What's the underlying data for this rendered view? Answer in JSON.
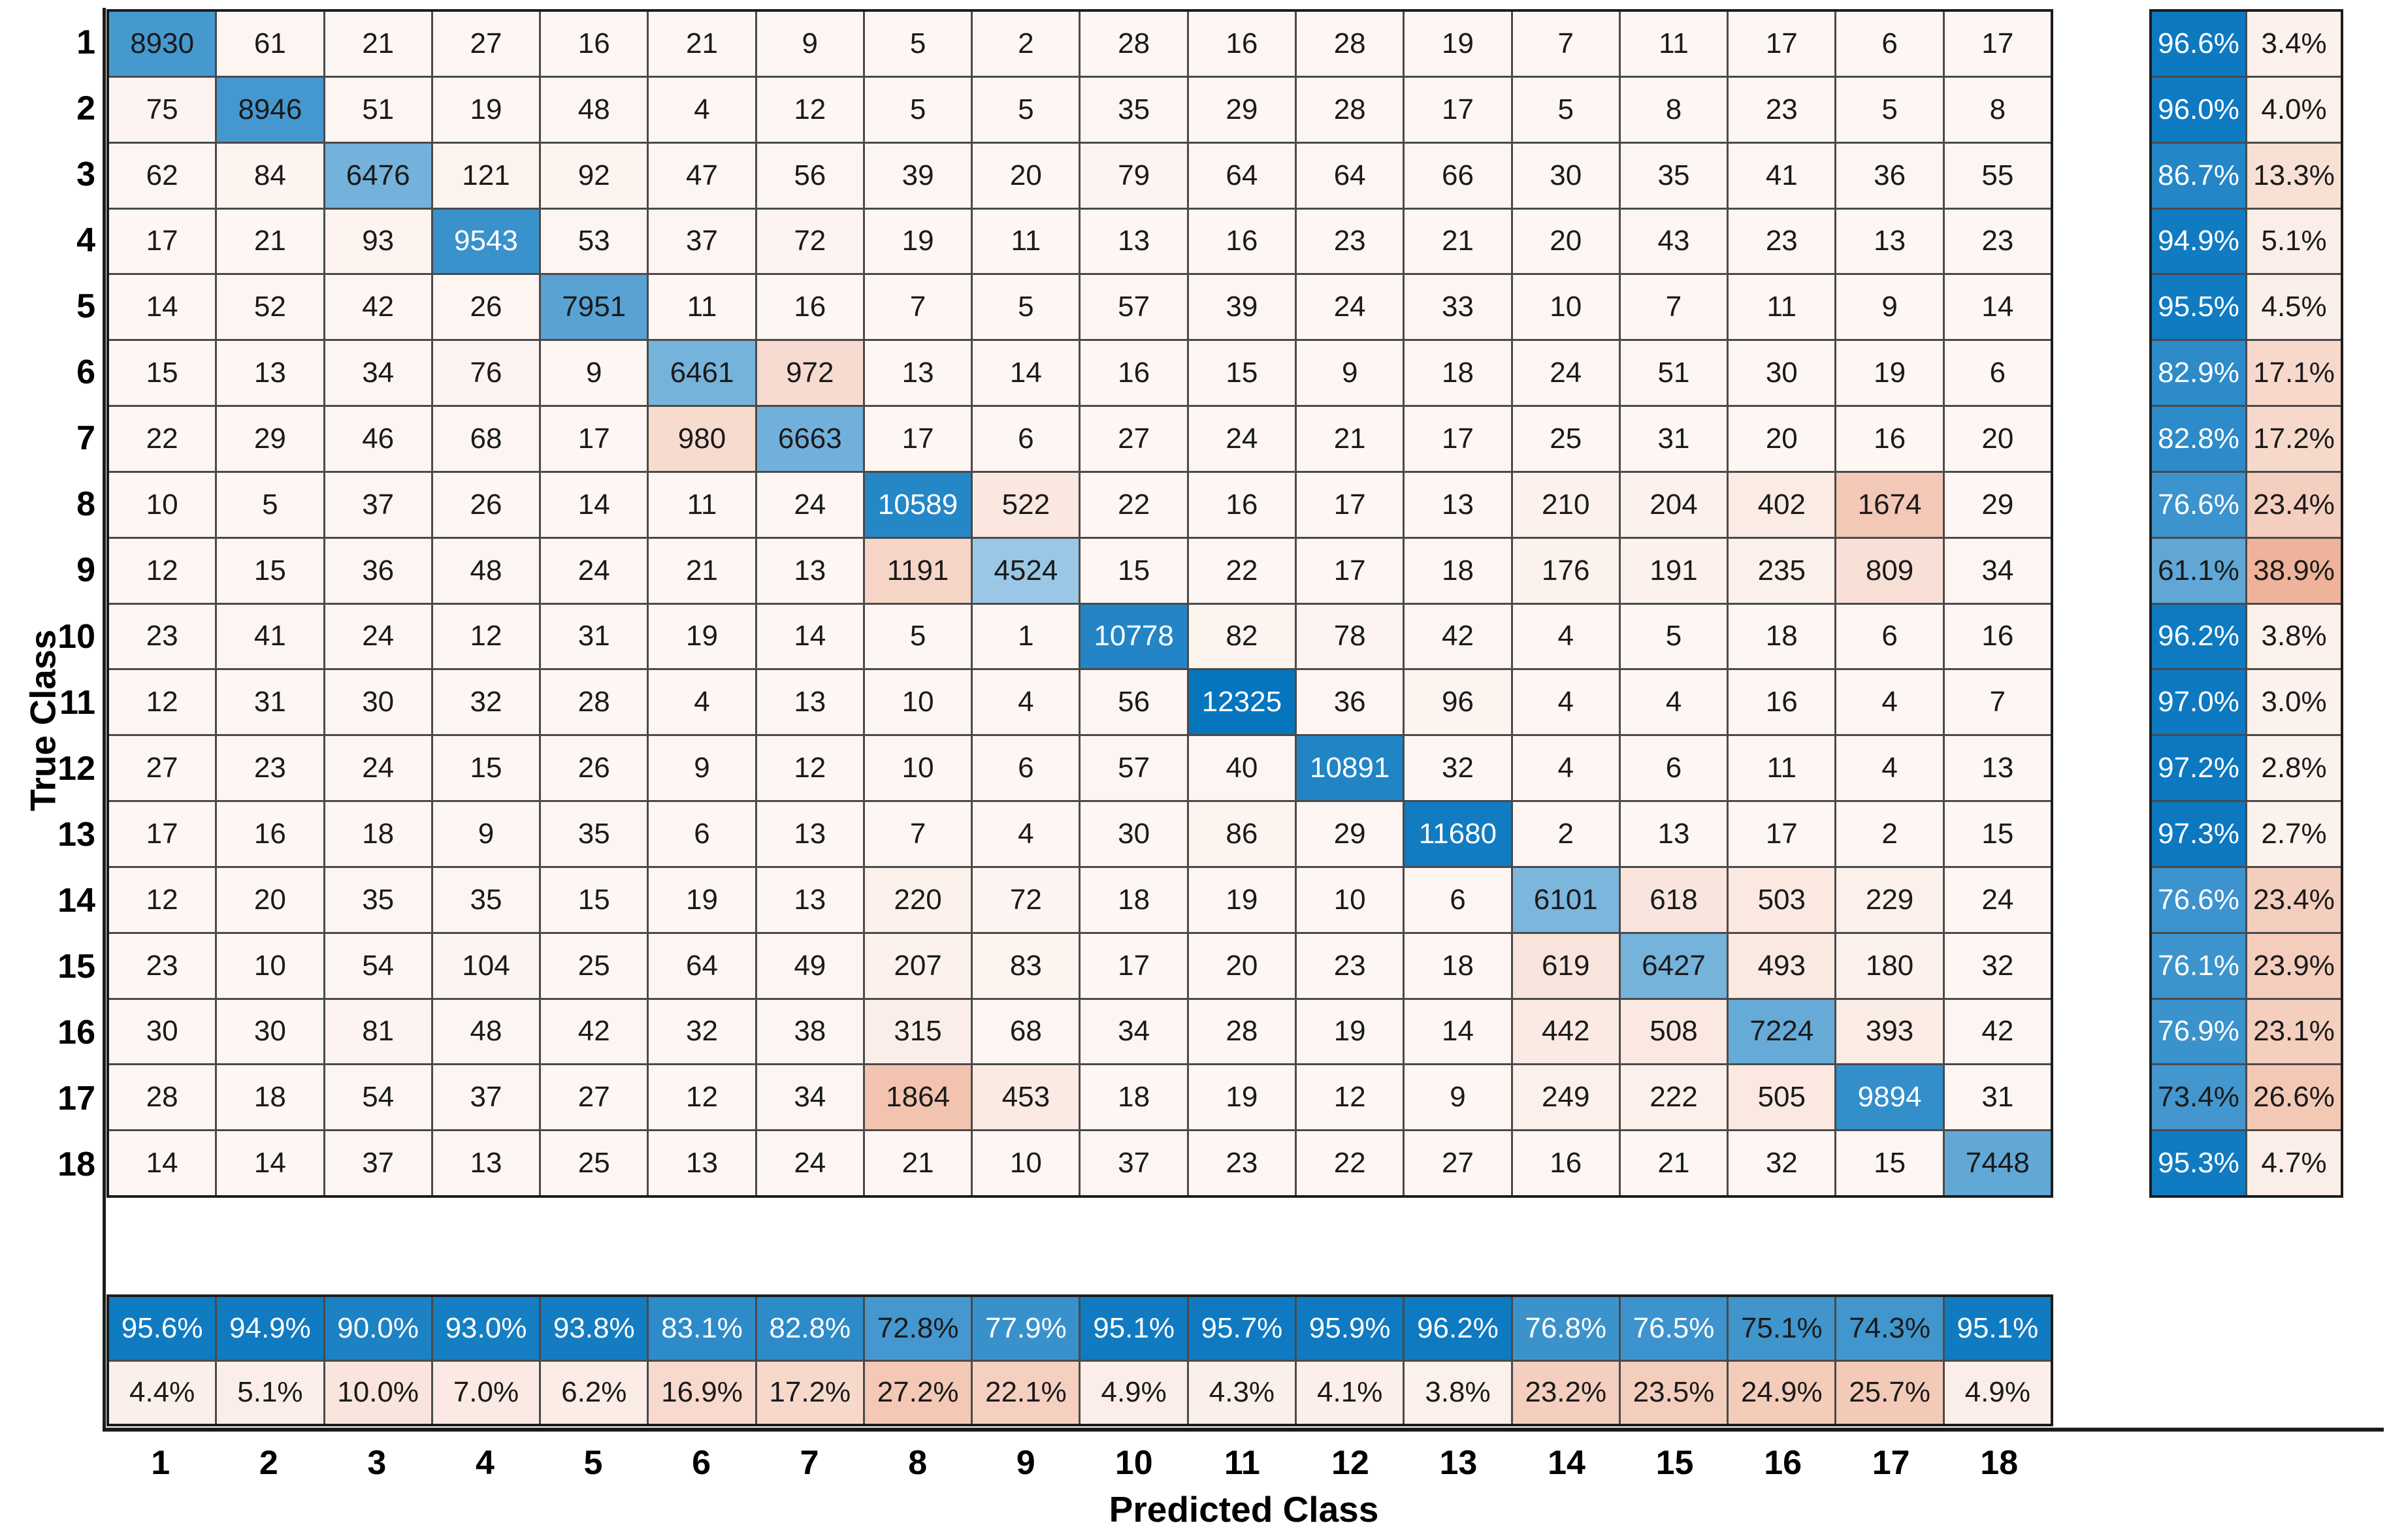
{
  "figure": {
    "background": "#ffffff"
  },
  "chart_data": {
    "type": "heatmap",
    "variant": "confusion-matrix-with-summaries",
    "title": "",
    "xlabel": "Predicted Class",
    "ylabel": "True Class",
    "classes": [
      "1",
      "2",
      "3",
      "4",
      "5",
      "6",
      "7",
      "8",
      "9",
      "10",
      "11",
      "12",
      "13",
      "14",
      "15",
      "16",
      "17",
      "18"
    ],
    "matrix": [
      [
        8930,
        61,
        21,
        27,
        16,
        21,
        9,
        5,
        2,
        28,
        16,
        28,
        19,
        7,
        11,
        17,
        6,
        17
      ],
      [
        75,
        8946,
        51,
        19,
        48,
        4,
        12,
        5,
        5,
        35,
        29,
        28,
        17,
        5,
        8,
        23,
        5,
        8
      ],
      [
        62,
        84,
        6476,
        121,
        92,
        47,
        56,
        39,
        20,
        79,
        64,
        64,
        66,
        30,
        35,
        41,
        36,
        55
      ],
      [
        17,
        21,
        93,
        9543,
        53,
        37,
        72,
        19,
        11,
        13,
        16,
        23,
        21,
        20,
        43,
        23,
        13,
        23
      ],
      [
        14,
        52,
        42,
        26,
        7951,
        11,
        16,
        7,
        5,
        57,
        39,
        24,
        33,
        10,
        7,
        11,
        9,
        14
      ],
      [
        15,
        13,
        34,
        76,
        9,
        6461,
        972,
        13,
        14,
        16,
        15,
        9,
        18,
        24,
        51,
        30,
        19,
        6
      ],
      [
        22,
        29,
        46,
        68,
        17,
        980,
        6663,
        17,
        6,
        27,
        24,
        21,
        17,
        25,
        31,
        20,
        16,
        20
      ],
      [
        10,
        5,
        37,
        26,
        14,
        11,
        24,
        10589,
        522,
        22,
        16,
        17,
        13,
        210,
        204,
        402,
        1674,
        29
      ],
      [
        12,
        15,
        36,
        48,
        24,
        21,
        13,
        1191,
        4524,
        15,
        22,
        17,
        18,
        176,
        191,
        235,
        809,
        34
      ],
      [
        23,
        41,
        24,
        12,
        31,
        19,
        14,
        5,
        1,
        10778,
        82,
        78,
        42,
        4,
        5,
        18,
        6,
        16
      ],
      [
        12,
        31,
        30,
        32,
        28,
        4,
        13,
        10,
        4,
        56,
        12325,
        36,
        96,
        4,
        4,
        16,
        4,
        7
      ],
      [
        27,
        23,
        24,
        15,
        26,
        9,
        12,
        10,
        6,
        57,
        40,
        10891,
        32,
        4,
        6,
        11,
        4,
        13
      ],
      [
        17,
        16,
        18,
        9,
        35,
        6,
        13,
        7,
        4,
        30,
        86,
        29,
        11680,
        2,
        13,
        17,
        2,
        15
      ],
      [
        12,
        20,
        35,
        35,
        15,
        19,
        13,
        220,
        72,
        18,
        19,
        10,
        6,
        6101,
        618,
        503,
        229,
        24
      ],
      [
        23,
        10,
        54,
        104,
        25,
        64,
        49,
        207,
        83,
        17,
        20,
        23,
        18,
        619,
        6427,
        493,
        180,
        32
      ],
      [
        30,
        30,
        81,
        48,
        42,
        32,
        38,
        315,
        68,
        34,
        28,
        19,
        14,
        442,
        508,
        7224,
        393,
        42
      ],
      [
        28,
        18,
        54,
        37,
        27,
        12,
        34,
        1864,
        453,
        18,
        19,
        12,
        9,
        249,
        222,
        505,
        9894,
        31
      ],
      [
        14,
        14,
        37,
        13,
        25,
        13,
        24,
        21,
        10,
        37,
        23,
        22,
        27,
        16,
        21,
        32,
        15,
        7448
      ]
    ],
    "row_summary": {
      "correct_pct": [
        96.6,
        96.0,
        86.7,
        94.9,
        95.5,
        82.9,
        82.8,
        76.6,
        61.1,
        96.2,
        97.0,
        97.2,
        97.3,
        76.6,
        76.1,
        76.9,
        73.4,
        95.3
      ],
      "incorrect_pct": [
        3.4,
        4.0,
        13.3,
        5.1,
        4.5,
        17.1,
        17.2,
        23.4,
        38.9,
        3.8,
        3.0,
        2.8,
        2.7,
        23.4,
        23.9,
        23.1,
        26.6,
        4.7
      ]
    },
    "col_summary": {
      "correct_pct": [
        95.6,
        94.9,
        90.0,
        93.0,
        93.8,
        83.1,
        82.8,
        72.8,
        77.9,
        95.1,
        95.7,
        95.9,
        96.2,
        76.8,
        76.5,
        75.1,
        74.3,
        95.1
      ],
      "incorrect_pct": [
        4.4,
        5.1,
        10.0,
        7.0,
        6.2,
        16.9,
        17.2,
        27.2,
        22.1,
        4.9,
        4.3,
        4.1,
        3.8,
        23.2,
        23.5,
        24.9,
        25.7,
        4.9
      ]
    },
    "grid": true,
    "legend_position": "none",
    "colors": {
      "diagonal": "#0072BD",
      "off_diagonal": "#D95319",
      "grid_line": "#4a4a4a",
      "axis": "#1c1c1c",
      "text_dark": "#1a1a1a",
      "text_light": "#ffffff"
    }
  }
}
